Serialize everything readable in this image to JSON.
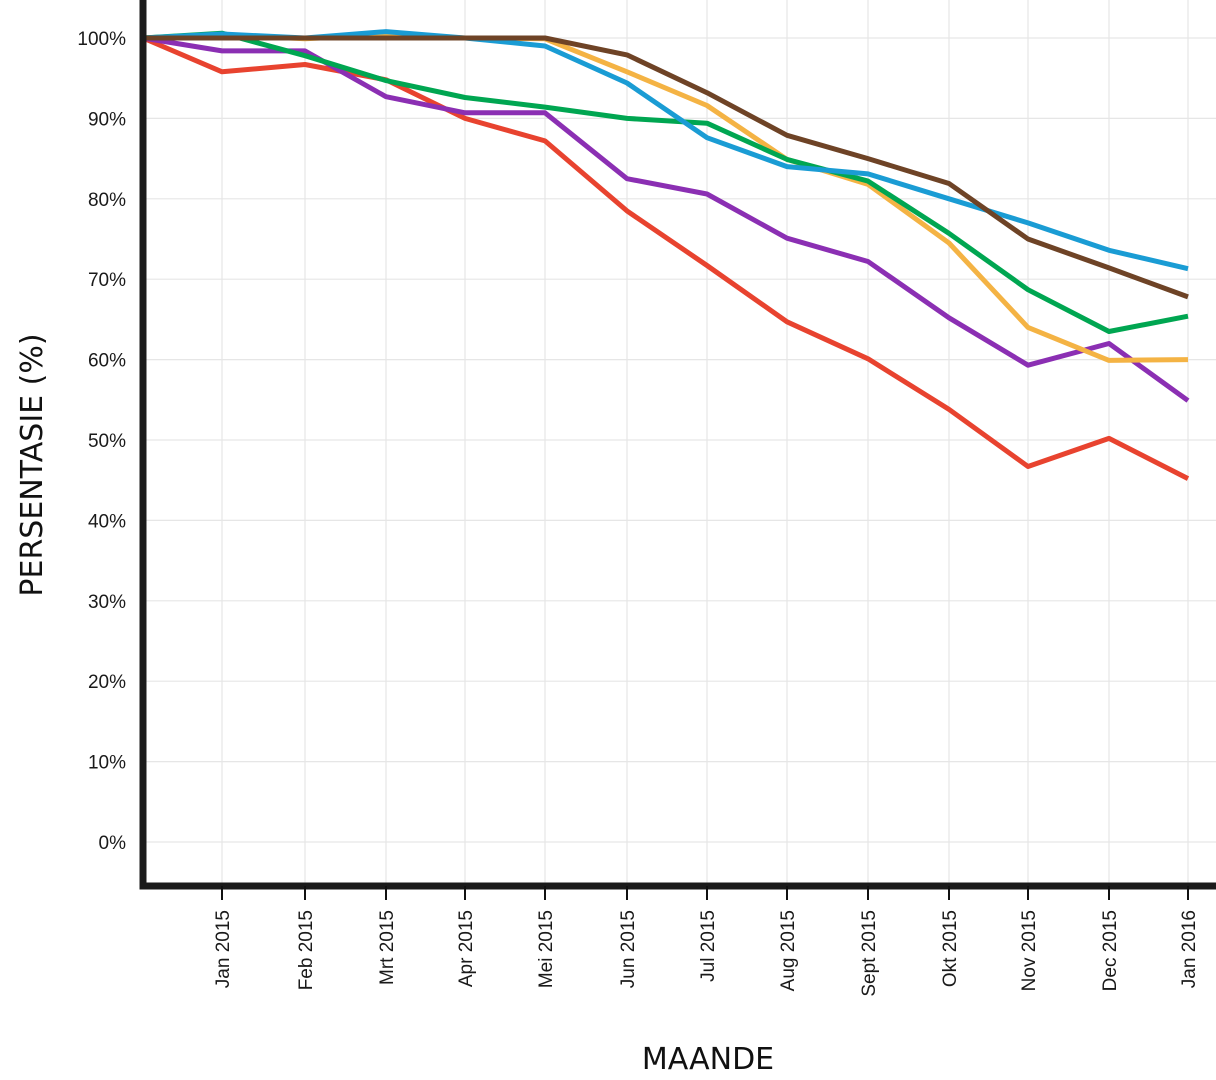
{
  "chart_data": {
    "type": "line",
    "title": "",
    "xlabel": "MAANDE",
    "ylabel": "PERSENTASIE (%)",
    "ylim": [
      0,
      100
    ],
    "yticks": [
      "0%",
      "10%",
      "20%",
      "30%",
      "40%",
      "50%",
      "60%",
      "70%",
      "80%",
      "90%",
      "100%"
    ],
    "grid": true,
    "legend": "none",
    "categories": [
      "Jan 2015",
      "Feb 2015",
      "Mrt 2015",
      "Apr 2015",
      "Mei 2015",
      "Jun 2015",
      "Jul 2015",
      "Aug 2015",
      "Sept 2015",
      "Okt 2015",
      "Nov 2015",
      "Dec 2015",
      "Jan 2016"
    ],
    "start_value": 100,
    "series": [
      {
        "color": "#E8432F",
        "values": [
          95.8,
          96.7,
          94.8,
          90.0,
          87.2,
          78.5,
          71.7,
          64.7,
          60.1,
          53.8,
          46.7,
          50.2,
          45.2
        ]
      },
      {
        "color": "#8B2FB3",
        "values": [
          98.4,
          98.4,
          92.7,
          90.7,
          90.7,
          82.5,
          80.6,
          75.1,
          72.2,
          65.2,
          59.3,
          62.0,
          54.9
        ]
      },
      {
        "color": "#F4B344",
        "values": [
          100.4,
          99.9,
          100.4,
          100.0,
          99.9,
          95.8,
          91.6,
          84.9,
          81.8,
          74.5,
          64.0,
          59.9,
          60.0
        ]
      },
      {
        "color": "#00A651",
        "values": [
          100.6,
          97.8,
          94.7,
          92.6,
          91.4,
          90.0,
          89.4,
          84.9,
          82.2,
          75.7,
          68.7,
          63.5,
          65.4
        ]
      },
      {
        "color": "#1A9CD4",
        "values": [
          100.5,
          100.0,
          100.8,
          100.0,
          99.0,
          94.4,
          87.6,
          84.0,
          83.1,
          80.0,
          77.0,
          73.6,
          71.3
        ]
      },
      {
        "color": "#6E4326",
        "values": [
          100.0,
          100.0,
          100.0,
          100.0,
          100.0,
          97.9,
          93.2,
          87.9,
          85.0,
          81.9,
          75.0,
          71.4,
          67.8
        ]
      }
    ]
  }
}
